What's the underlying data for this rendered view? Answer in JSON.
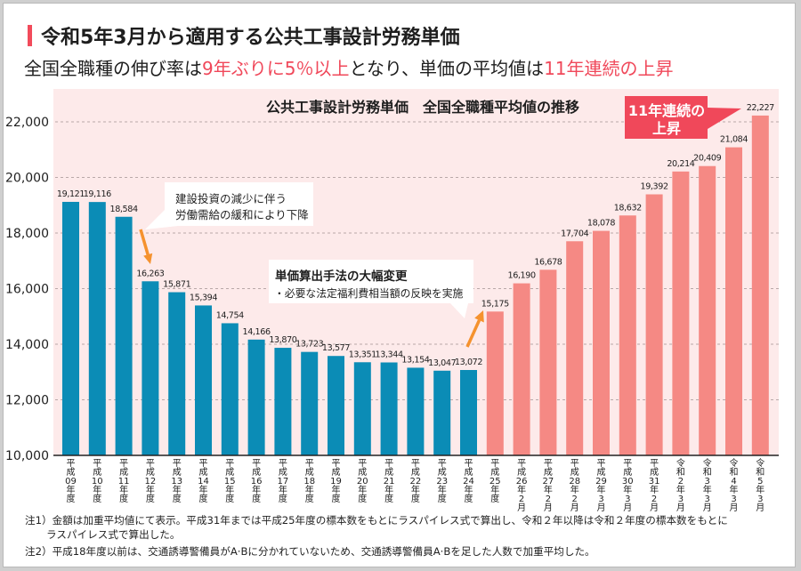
{
  "header": {
    "title": "令和5年3月から適用する公共工事設計労務単価",
    "subtitle_parts": [
      {
        "text": "全国全職種の伸び率は",
        "emphasis": false
      },
      {
        "text": "9年ぶりに5％以上",
        "emphasis": true
      },
      {
        "text": "となり、単価の平均値は",
        "emphasis": false
      },
      {
        "text": "11年連続の上昇",
        "emphasis": true
      }
    ]
  },
  "colors": {
    "accent": "#f0485a",
    "bar_before": "#0b8cb6",
    "bar_after": "#f58984",
    "plot_bg": "#fdeaea",
    "arrow": "#f5922e",
    "callout_bg": "#ffffff",
    "callout_accent_text": "#ffffff"
  },
  "chart_data": {
    "type": "bar",
    "title": "公共工事設計労務単価　全国全職種平均値の推移",
    "xlabel": "",
    "ylabel": "",
    "ylim": [
      10000,
      23000
    ],
    "yticks": [
      10000,
      12000,
      14000,
      16000,
      18000,
      20000,
      22000
    ],
    "grid": true,
    "categories": [
      "平成09年度",
      "平成10年度",
      "平成11年度",
      "平成12年度",
      "平成13年度",
      "平成14年度",
      "平成15年度",
      "平成16年度",
      "平成17年度",
      "平成18年度",
      "平成19年度",
      "平成20年度",
      "平成21年度",
      "平成22年度",
      "平成23年度",
      "平成24年度",
      "平成25年度",
      "平成26年2月",
      "平成27年2月",
      "平成28年2月",
      "平成29年3月",
      "平成30年3月",
      "平成31年2月",
      "令和2年3月",
      "令和3年3月",
      "令和4年3月",
      "令和5年3月"
    ],
    "values": [
      19121,
      19116,
      18584,
      16263,
      15871,
      15394,
      14754,
      14166,
      13870,
      13723,
      13577,
      13351,
      13344,
      13154,
      13047,
      13072,
      15175,
      16190,
      16678,
      17704,
      18078,
      18632,
      19392,
      20214,
      20409,
      21084,
      22227
    ],
    "bar_color_groups": [
      {
        "color": "#0b8cb6",
        "count": 16
      },
      {
        "color": "#f58984",
        "count": 11
      }
    ],
    "annotations": [
      {
        "lines": [
          "建設投資の減少に伴う",
          "労働需給の緩和により下降"
        ],
        "arrow": "down"
      },
      {
        "lines": [
          "単価算出手法の大幅変更",
          "・必要な法定福利費相当額の反映を実施"
        ],
        "arrow": "up"
      },
      {
        "lines": [
          "11年連続の",
          "上昇"
        ]
      }
    ]
  },
  "notes": [
    {
      "label": "注1）",
      "lines": [
        "金額は加重平均値にて表示。平成31年までは平成25年度の標本数をもとにラスパイレス式で算出し、令和２年以降は令和２年度の標本数をもとに",
        "ラスパイレス式で算出した。"
      ]
    },
    {
      "label": "注2）",
      "lines": [
        "平成18年度以前は、交通誘導警備員がA·Bに分かれていないため、交通誘導警備員A·Bを足した人数で加重平均した。"
      ]
    }
  ]
}
